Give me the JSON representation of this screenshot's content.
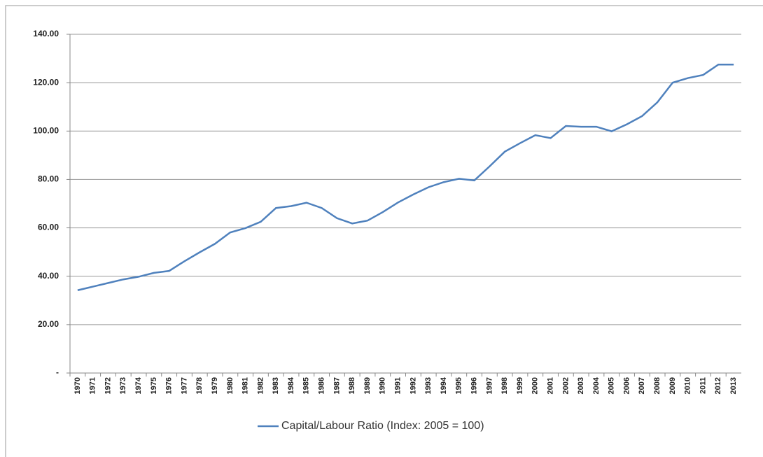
{
  "chart_data": {
    "type": "line",
    "categories": [
      "1970",
      "1971",
      "1972",
      "1973",
      "1974",
      "1975",
      "1976",
      "1977",
      "1978",
      "1979",
      "1980",
      "1981",
      "1982",
      "1983",
      "1984",
      "1985",
      "1986",
      "1987",
      "1988",
      "1989",
      "1990",
      "1991",
      "1992",
      "1993",
      "1994",
      "1995",
      "1996",
      "1997",
      "1998",
      "1999",
      "2000",
      "2001",
      "2002",
      "2003",
      "2004",
      "2005",
      "2006",
      "2007",
      "2008",
      "2009",
      "2010",
      "2011",
      "2012",
      "2013"
    ],
    "series": [
      {
        "name": "Capital/Labour Ratio (Index: 2005 = 100)",
        "color": "#4f81bd",
        "values": [
          34.2,
          35.7,
          37.2,
          38.7,
          39.8,
          41.4,
          42.2,
          46.2,
          49.9,
          53.4,
          58.1,
          59.9,
          62.5,
          68.2,
          69.0,
          70.4,
          68.2,
          64.0,
          61.8,
          63.0,
          66.5,
          70.5,
          73.8,
          76.8,
          78.9,
          80.3,
          79.6,
          85.4,
          91.5,
          95.0,
          98.3,
          97.1,
          102.1,
          101.8,
          101.8,
          99.9,
          102.8,
          106.2,
          111.9,
          120.0,
          121.9,
          123.2,
          127.5,
          127.5
        ]
      }
    ],
    "ylim": [
      0,
      140
    ],
    "yticks": [
      {
        "value": 0,
        "label": "-"
      },
      {
        "value": 20,
        "label": "20.00"
      },
      {
        "value": 40,
        "label": "40.00"
      },
      {
        "value": 60,
        "label": "60.00"
      },
      {
        "value": 80,
        "label": "80.00"
      },
      {
        "value": 100,
        "label": "100.00"
      },
      {
        "value": 120,
        "label": "120.00"
      },
      {
        "value": 140,
        "label": "140.00"
      }
    ],
    "grid": true,
    "legend": "bottom"
  }
}
